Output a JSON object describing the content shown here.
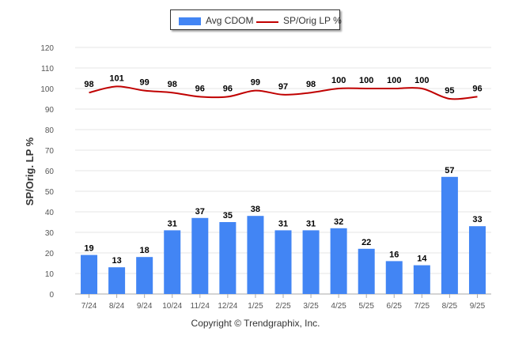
{
  "chart_data": {
    "type": "bar",
    "categories": [
      "7/24",
      "8/24",
      "9/24",
      "10/24",
      "11/24",
      "12/24",
      "1/25",
      "2/25",
      "3/25",
      "4/25",
      "5/25",
      "6/25",
      "7/25",
      "8/25",
      "9/25"
    ],
    "series": [
      {
        "name": "Avg CDOM",
        "type": "bar",
        "color": "#4285f4",
        "values": [
          19,
          13,
          18,
          31,
          37,
          35,
          38,
          31,
          31,
          32,
          22,
          16,
          14,
          57,
          33
        ]
      },
      {
        "name": "SP/Orig LP %",
        "type": "line",
        "color": "#c00000",
        "values": [
          98,
          101,
          99,
          98,
          96,
          96,
          99,
          97,
          98,
          100,
          100,
          100,
          100,
          95,
          96
        ]
      }
    ],
    "ylabel": "SP/Orig. LP %",
    "xlabel": "",
    "ylim": [
      0,
      120
    ],
    "yticks": [
      0,
      10,
      20,
      30,
      40,
      50,
      60,
      70,
      80,
      90,
      100,
      110,
      120
    ],
    "grid": true,
    "legend_position": "top-center"
  },
  "copyright": "Copyright © Trendgraphix, Inc."
}
